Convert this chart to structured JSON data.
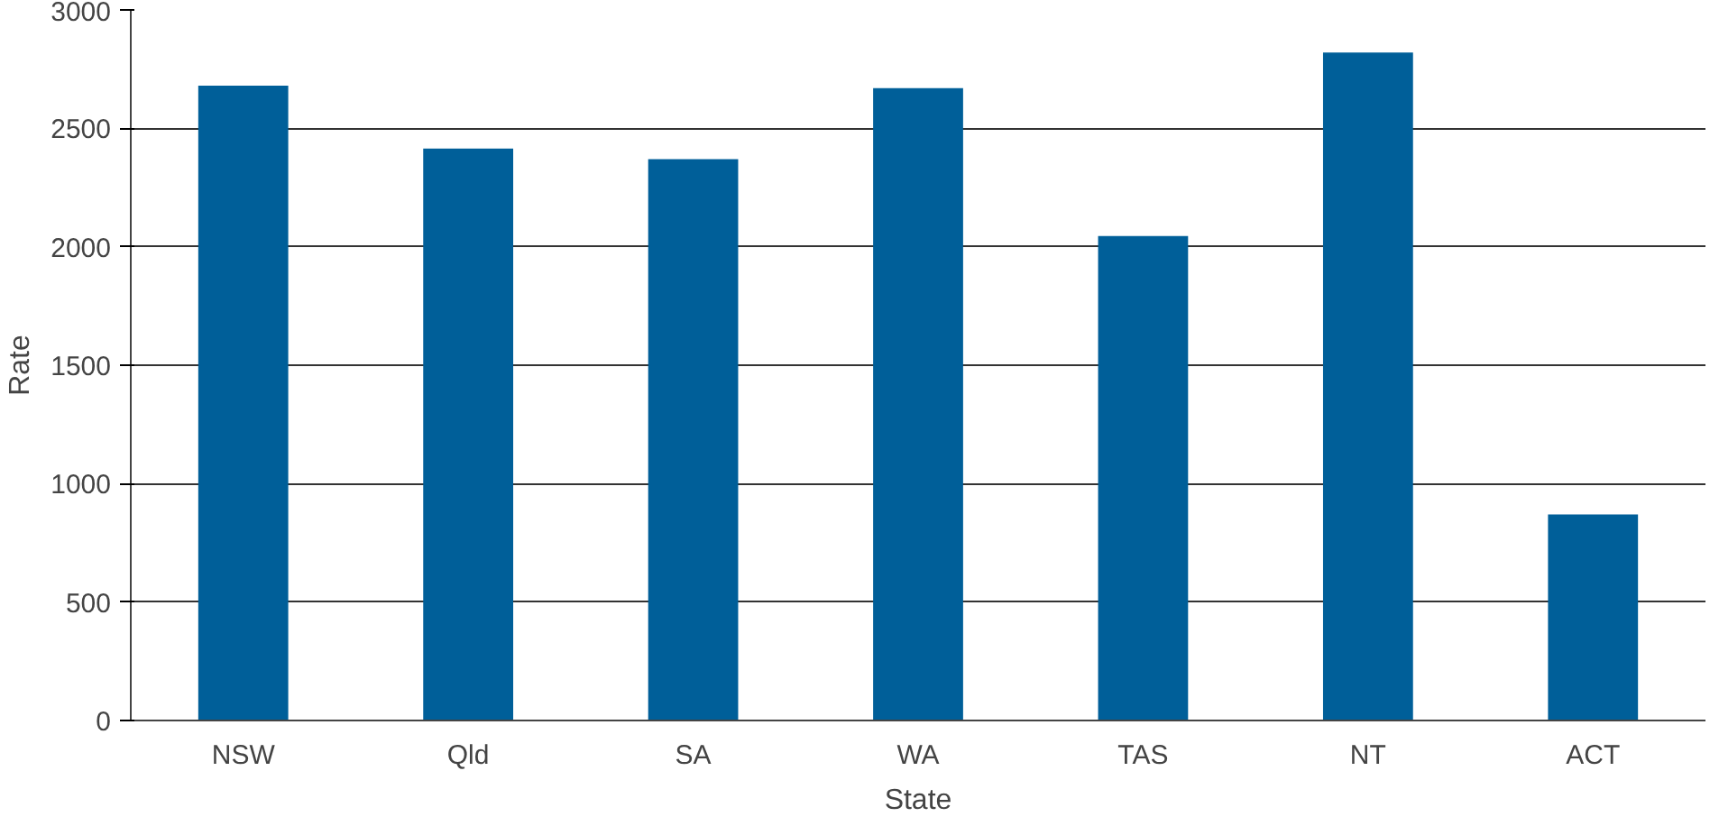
{
  "chart_data": {
    "type": "bar",
    "xlabel": "State",
    "ylabel": "Rate",
    "categories": [
      "NSW",
      "Qld",
      "SA",
      "WA",
      "TAS",
      "NT",
      "ACT"
    ],
    "values": [
      2680,
      2415,
      2370,
      2670,
      2045,
      2820,
      870
    ],
    "color": "#005f99",
    "ylim": [
      0,
      3000
    ],
    "yticks": [
      0,
      500,
      1000,
      1500,
      2000,
      2500,
      3000
    ],
    "grid": "y"
  }
}
